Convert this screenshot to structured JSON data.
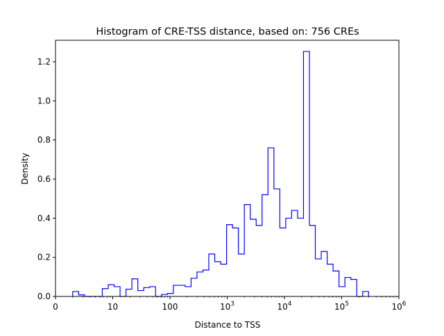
{
  "chart_data": {
    "type": "histogram-step",
    "title": "Histogram of CRE-TSS distance, based on: 756 CREs",
    "xlabel": "Distance to TSS",
    "ylabel": "Density",
    "xscale": "log",
    "xlim_log10": [
      0,
      6
    ],
    "ylim": [
      0,
      1.31
    ],
    "x_ticks": [
      {
        "log10": 0,
        "label": "0",
        "sup": ""
      },
      {
        "log10": 1,
        "label": "10",
        "sup": ""
      },
      {
        "log10": 2,
        "label": "100",
        "sup": ""
      },
      {
        "log10": 3,
        "label": "10",
        "sup": "3"
      },
      {
        "log10": 4,
        "label": "10",
        "sup": "4"
      },
      {
        "log10": 5,
        "label": "10",
        "sup": "5"
      },
      {
        "log10": 6,
        "label": "10",
        "sup": "6"
      }
    ],
    "y_ticks": [
      {
        "value": 0,
        "label": "0.0"
      },
      {
        "value": 0.2,
        "label": "0.2"
      },
      {
        "value": 0.4,
        "label": "0.4"
      },
      {
        "value": 0.6,
        "label": "0.6"
      },
      {
        "value": 0.8,
        "label": "0.8"
      },
      {
        "value": 1.0,
        "label": "1.0"
      },
      {
        "value": 1.2,
        "label": "1.2"
      }
    ],
    "bins_log10_start": 0.301,
    "bins_log10_end": 5.47,
    "density": [
      0.025,
      0.008,
      0,
      0,
      0,
      0.04,
      0.06,
      0.05,
      0,
      0.037,
      0.09,
      0.03,
      0.045,
      0.05,
      0,
      0.01,
      0.015,
      0.057,
      0.057,
      0.05,
      0.093,
      0.125,
      0.135,
      0.217,
      0.178,
      0.165,
      0.367,
      0.35,
      0.217,
      0.47,
      0.395,
      0.363,
      0.52,
      0.76,
      0.55,
      0.35,
      0.4,
      0.44,
      0.4,
      1.253,
      0.363,
      0.192,
      0.23,
      0.165,
      0.13,
      0.05,
      0.097,
      0.087,
      0,
      0.025
    ],
    "color": "#0000ff",
    "grid": false
  }
}
